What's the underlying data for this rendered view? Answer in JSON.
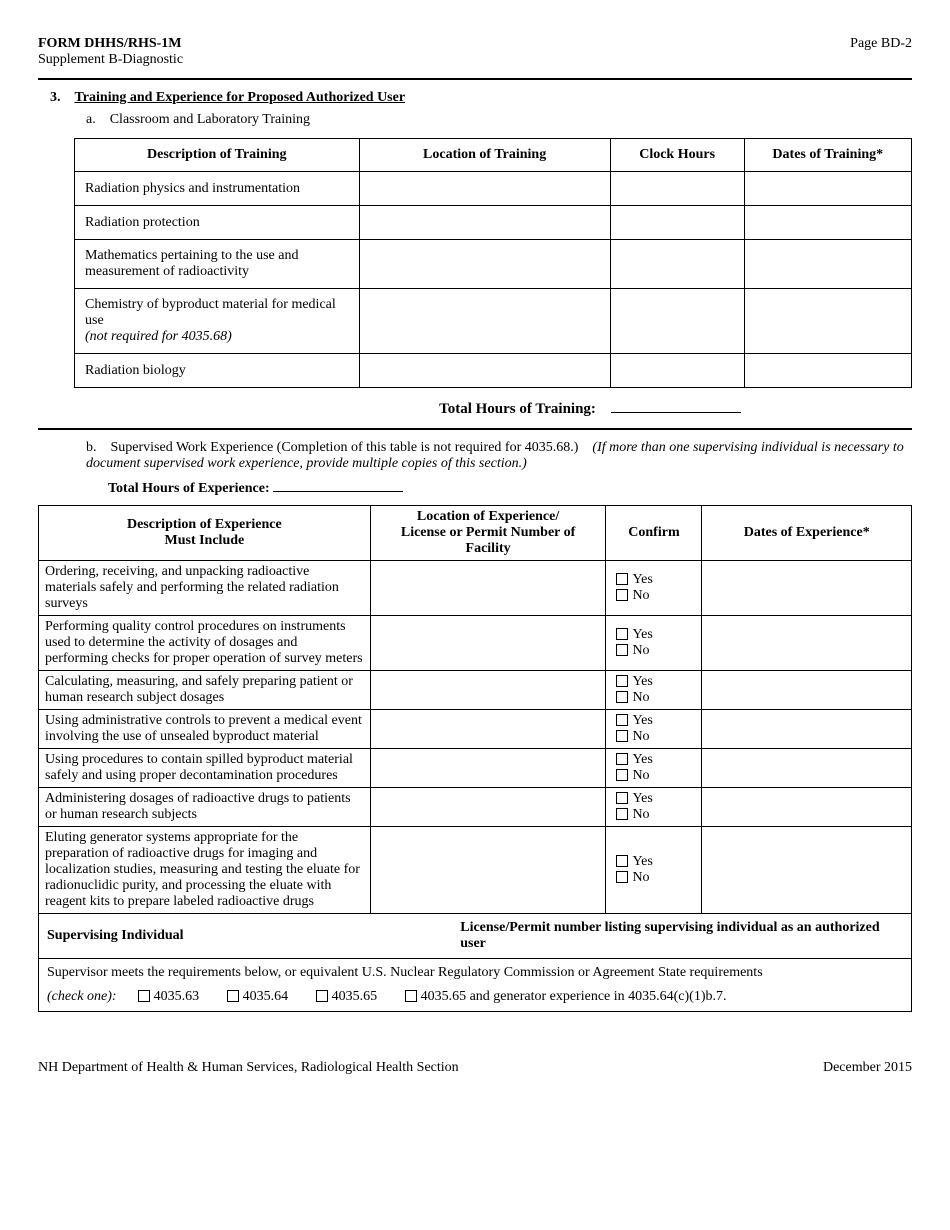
{
  "header": {
    "form_code": "FORM DHHS/RHS-1M",
    "supplement": "Supplement B-Diagnostic",
    "page": "Page BD-2"
  },
  "section3": {
    "number": "3.",
    "title": "Training and Experience for Proposed Authorized User",
    "sub_a": {
      "letter": "a.",
      "text": "Classroom and Laboratory Training",
      "headers": {
        "desc": "Description of Training",
        "location": "Location of Training",
        "hours": "Clock Hours",
        "dates": "Dates of Training*"
      },
      "rows": [
        {
          "desc": "Radiation physics and instrumentation"
        },
        {
          "desc": "Radiation protection"
        },
        {
          "desc": "Mathematics pertaining to the use and measurement of radioactivity"
        },
        {
          "desc_main": "Chemistry of byproduct material for medical use",
          "desc_note": "(not required for 4035.68)"
        },
        {
          "desc": "Radiation biology"
        }
      ],
      "total_label": "Total Hours of Training:"
    },
    "sub_b": {
      "letter": "b.",
      "text": "Supervised Work Experience   (Completion of this table is not required for 4035.68.)",
      "note_italic": "(If more than one supervising individual is necessary to document supervised work experience, provide multiple copies of this section.)",
      "total_label": "Total Hours of Experience:",
      "headers": {
        "desc_l1": "Description of Experience",
        "desc_l2": "Must Include",
        "location_l1": "Location of Experience/",
        "location_l2": "License or Permit Number of Facility",
        "confirm": "Confirm",
        "dates": "Dates of Experience*"
      },
      "yes": "Yes",
      "no": "No",
      "rows": [
        {
          "desc": "Ordering, receiving, and unpacking radioactive materials safely and performing the related radiation surveys"
        },
        {
          "desc": "Performing quality control procedures on instruments used to determine the activity of dosages and performing checks for proper operation of survey meters"
        },
        {
          "desc": "Calculating, measuring, and safely preparing patient or human research subject dosages"
        },
        {
          "desc": "Using administrative controls to prevent a medical event involving the use of unsealed byproduct material"
        },
        {
          "desc": "Using procedures to contain spilled byproduct material safely and using proper decontamination procedures"
        },
        {
          "desc": "Administering dosages of radioactive drugs to patients or human research subjects"
        },
        {
          "desc": "Eluting generator systems appropriate for the preparation of radioactive drugs for imaging and localization studies, measuring and testing the eluate for radionuclidic purity, and processing the eluate with reagent kits to prepare labeled radioactive drugs"
        }
      ],
      "supervising_label": "Supervising Individual",
      "license_label": "License/Permit number listing supervising individual as an authorized user",
      "req_text": "Supervisor meets the requirements below, or equivalent U.S. Nuclear Regulatory Commission or Agreement State requirements",
      "check_one": "(check one):",
      "options": [
        "4035.63",
        "4035.64",
        "4035.65",
        "4035.65 and generator experience in 4035.64(c)(1)b.7."
      ]
    }
  },
  "footer": {
    "left": "NH Department of Health & Human Services, Radiological Health Section",
    "right": "December 2015"
  }
}
